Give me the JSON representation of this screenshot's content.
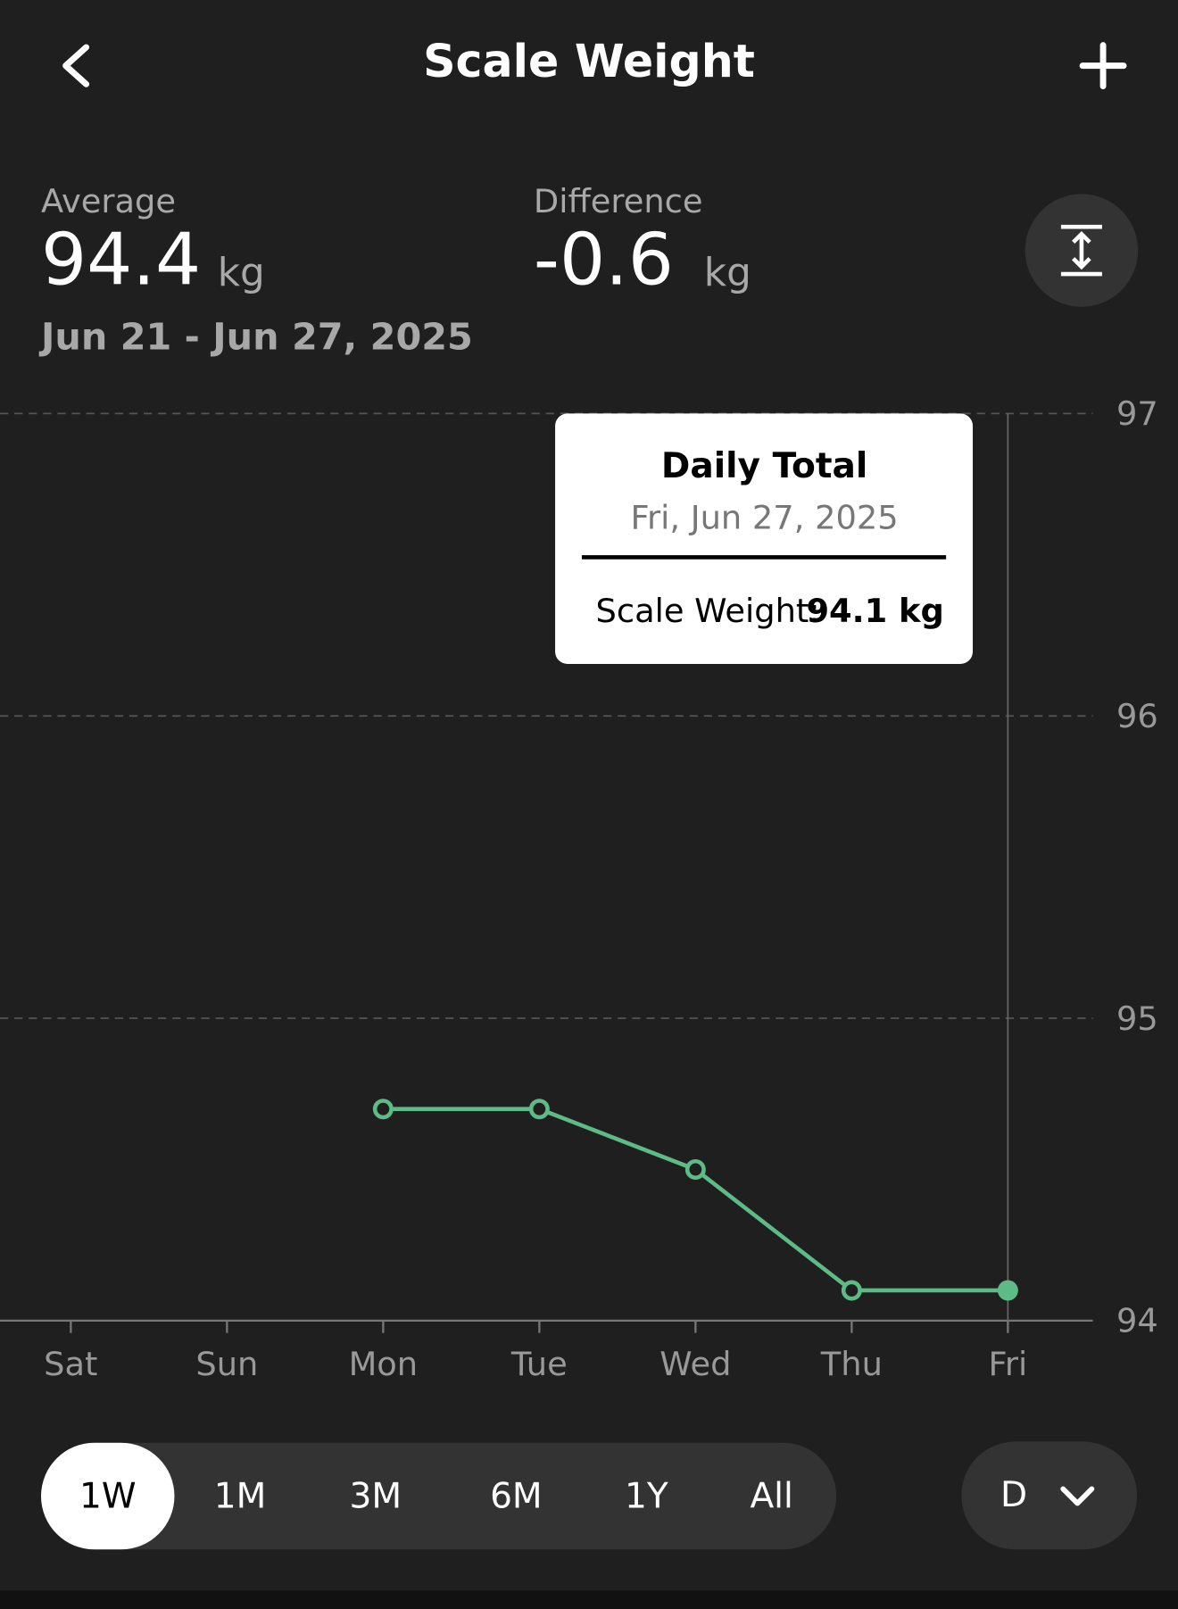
{
  "header": {
    "title": "Scale Weight"
  },
  "stats": {
    "average_label": "Average",
    "average_value": 94.4,
    "average_unit": "kg",
    "difference_label": "Difference",
    "difference_value": -0.6,
    "difference_unit": "kg",
    "date_range": "Jun 21 - Jun 27, 2025"
  },
  "chart_data": {
    "type": "line",
    "categories": [
      "Sat",
      "Sun",
      "Mon",
      "Tue",
      "Wed",
      "Thu",
      "Fri"
    ],
    "series": [
      {
        "name": "Scale Weight",
        "color": "#5dbb85",
        "values": [
          null,
          null,
          94.7,
          94.7,
          94.5,
          94.1,
          94.1
        ]
      }
    ],
    "ylim": [
      94,
      97
    ],
    "yticks": [
      94,
      95,
      96,
      97
    ],
    "grid": true
  },
  "tooltip": {
    "title": "Daily Total",
    "date": "Fri, Jun 27, 2025",
    "label": "Scale Weight:",
    "value": "94.1 kg"
  },
  "ranges": [
    "1W",
    "1M",
    "3M",
    "6M",
    "1Y",
    "All"
  ],
  "aggregation": "D"
}
